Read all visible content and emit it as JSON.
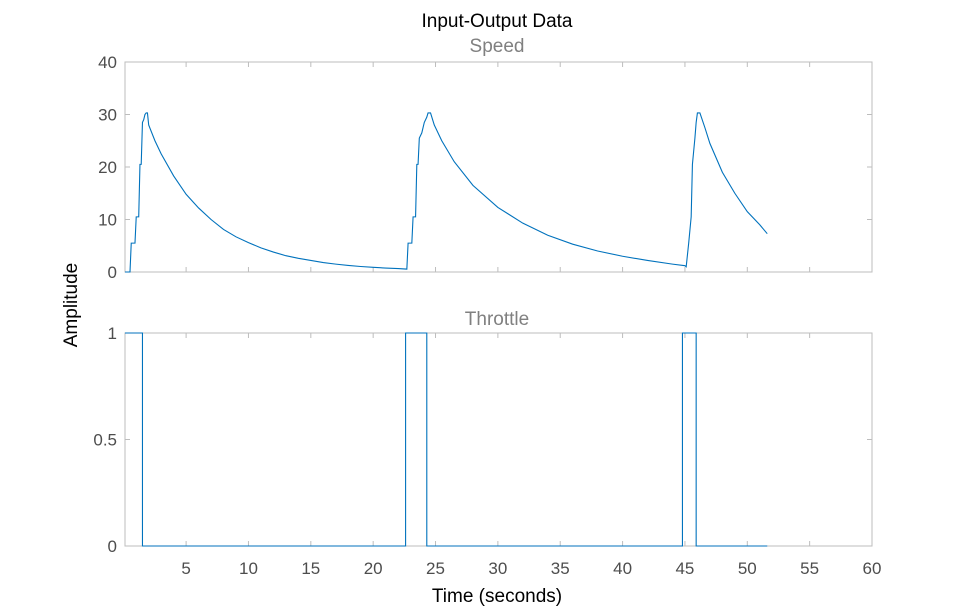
{
  "figure": {
    "title": "Input-Output Data",
    "xlabel": "Time (seconds)",
    "ylabel": "Amplitude"
  },
  "chart_data": [
    {
      "type": "line",
      "title": "Speed",
      "xlim": [
        0.1,
        60
      ],
      "ylim": [
        0,
        40
      ],
      "yticks": [
        0,
        10,
        20,
        30,
        40
      ],
      "xticks": [
        5,
        10,
        15,
        20,
        25,
        30,
        35,
        40,
        45,
        50,
        55,
        60
      ],
      "grid": false,
      "series": [
        {
          "color": "#0072bd",
          "points": [
            [
              0.1,
              0
            ],
            [
              0.5,
              0
            ],
            [
              0.6,
              5.5
            ],
            [
              0.9,
              5.5
            ],
            [
              1.0,
              10.5
            ],
            [
              1.2,
              10.5
            ],
            [
              1.3,
              20.5
            ],
            [
              1.4,
              20.5
            ],
            [
              1.5,
              28.5
            ],
            [
              1.6,
              29
            ],
            [
              1.7,
              30
            ],
            [
              1.8,
              30.3
            ],
            [
              1.9,
              30.3
            ],
            [
              2.0,
              28
            ],
            [
              2.5,
              25
            ],
            [
              3.0,
              22.5
            ],
            [
              4.0,
              18.3
            ],
            [
              5.0,
              14.8
            ],
            [
              6.0,
              12.2
            ],
            [
              7.0,
              10.0
            ],
            [
              8.0,
              8.1
            ],
            [
              9.0,
              6.7
            ],
            [
              10.0,
              5.6
            ],
            [
              11.0,
              4.6
            ],
            [
              12.0,
              3.8
            ],
            [
              13.0,
              3.1
            ],
            [
              14.0,
              2.6
            ],
            [
              15.0,
              2.2
            ],
            [
              16.0,
              1.8
            ],
            [
              17.0,
              1.5
            ],
            [
              18.0,
              1.25
            ],
            [
              19.0,
              1.05
            ],
            [
              20.0,
              0.9
            ],
            [
              21.0,
              0.75
            ],
            [
              22.0,
              0.65
            ],
            [
              22.7,
              0.55
            ],
            [
              22.8,
              5.5
            ],
            [
              23.1,
              5.5
            ],
            [
              23.2,
              10.5
            ],
            [
              23.4,
              10.5
            ],
            [
              23.5,
              20.5
            ],
            [
              23.6,
              20.5
            ],
            [
              23.7,
              25.5
            ],
            [
              23.9,
              26.5
            ],
            [
              24.1,
              28.5
            ],
            [
              24.3,
              29.5
            ],
            [
              24.4,
              30.3
            ],
            [
              24.6,
              30.3
            ],
            [
              24.9,
              28
            ],
            [
              25.5,
              25
            ],
            [
              26.5,
              21
            ],
            [
              28.0,
              16.5
            ],
            [
              30.0,
              12.3
            ],
            [
              32.0,
              9.3
            ],
            [
              34.0,
              7.0
            ],
            [
              36.0,
              5.3
            ],
            [
              38.0,
              4.0
            ],
            [
              40.0,
              3.0
            ],
            [
              42.0,
              2.2
            ],
            [
              44.0,
              1.5
            ],
            [
              45.0,
              1.2
            ],
            [
              45.1,
              1.0
            ],
            [
              45.3,
              5.5
            ],
            [
              45.5,
              10.5
            ],
            [
              45.6,
              20.5
            ],
            [
              45.8,
              25.5
            ],
            [
              45.9,
              28.5
            ],
            [
              46.0,
              30.3
            ],
            [
              46.2,
              30.3
            ],
            [
              46.6,
              27.5
            ],
            [
              47.0,
              24.5
            ],
            [
              48.0,
              19
            ],
            [
              49.0,
              15
            ],
            [
              50.0,
              11.5
            ],
            [
              51.0,
              9.0
            ],
            [
              51.6,
              7.3
            ]
          ]
        }
      ]
    },
    {
      "type": "line",
      "title": "Throttle",
      "xlim": [
        0.1,
        60
      ],
      "ylim": [
        0,
        1
      ],
      "yticks": [
        0,
        0.5,
        1
      ],
      "xticks": [
        5,
        10,
        15,
        20,
        25,
        30,
        35,
        40,
        45,
        50,
        55,
        60
      ],
      "grid": false,
      "series": [
        {
          "color": "#0072bd",
          "points": [
            [
              0.1,
              1
            ],
            [
              1.5,
              1
            ],
            [
              1.5,
              0
            ],
            [
              22.6,
              0
            ],
            [
              22.6,
              1
            ],
            [
              24.3,
              1
            ],
            [
              24.3,
              0
            ],
            [
              44.8,
              0
            ],
            [
              44.8,
              1
            ],
            [
              45.9,
              1
            ],
            [
              45.9,
              0
            ],
            [
              51.6,
              0
            ]
          ]
        }
      ]
    }
  ]
}
